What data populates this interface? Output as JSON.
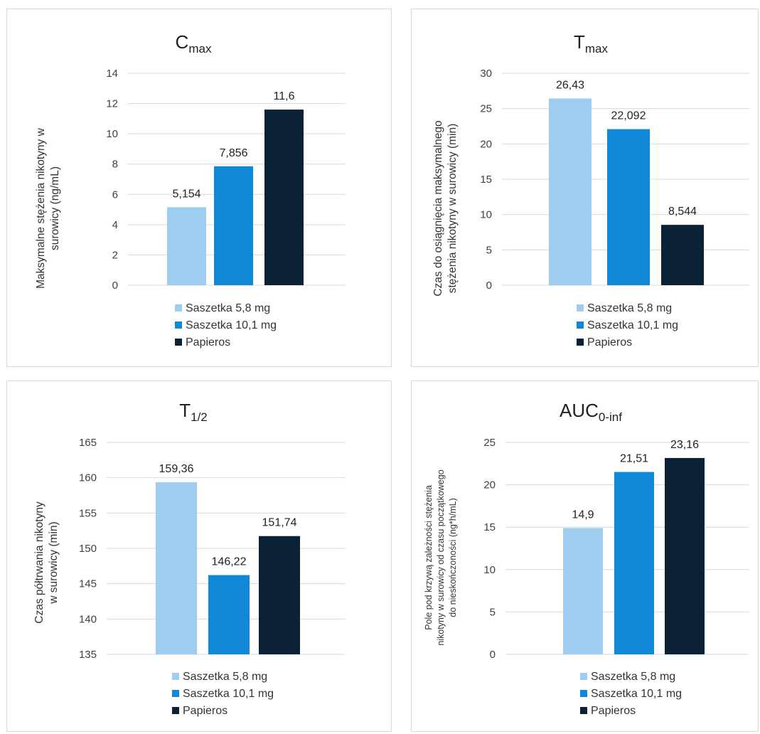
{
  "colors": {
    "saszetka_5_8": "#9fcdef",
    "saszetka_10_1": "#1088d8",
    "papieros": "#0a2136"
  },
  "chart_data": [
    {
      "type": "bar",
      "title_main": "C",
      "title_sub": "max",
      "ylabel": [
        "Maksymalne stężenia nikotyny w",
        "surowicy  (ng/mL)"
      ],
      "ylim": [
        0,
        14
      ],
      "ticks": [
        "0",
        "2",
        "4",
        "6",
        "8",
        "10",
        "12",
        "14"
      ],
      "tick_values": [
        0,
        2,
        4,
        6,
        8,
        10,
        12,
        14
      ],
      "series": [
        {
          "name": "Saszetka 5,8 mg",
          "value": 5.154,
          "label": "5,154"
        },
        {
          "name": "Saszetka 10,1 mg",
          "value": 7.856,
          "label": "7,856"
        },
        {
          "name": "Papieros",
          "value": 11.6,
          "label": "11,6"
        }
      ],
      "legend": "bottom"
    },
    {
      "type": "bar",
      "title_main": "T",
      "title_sub": "max",
      "ylabel": [
        "Czas do osiągnięcia maksymalnego",
        "stężenia nikotyny w surowicy (min)"
      ],
      "ylim": [
        0,
        30
      ],
      "ticks": [
        "0",
        "5",
        "10",
        "15",
        "20",
        "25",
        "30"
      ],
      "tick_values": [
        0,
        5,
        10,
        15,
        20,
        25,
        30
      ],
      "series": [
        {
          "name": "Saszetka 5,8 mg",
          "value": 26.43,
          "label": "26,43"
        },
        {
          "name": "Saszetka 10,1 mg",
          "value": 22.092,
          "label": "22,092"
        },
        {
          "name": "Papieros",
          "value": 8.544,
          "label": "8,544"
        }
      ],
      "legend": "bottom"
    },
    {
      "type": "bar",
      "title_main": "T",
      "title_sub": "1/2",
      "ylabel": [
        "Czas półtrwania nikotyny",
        "w surowicy (min)"
      ],
      "ylim": [
        135,
        165
      ],
      "ticks": [
        "135",
        "140",
        "145",
        "150",
        "155",
        "160",
        "165"
      ],
      "tick_values": [
        135,
        140,
        145,
        150,
        155,
        160,
        165
      ],
      "series": [
        {
          "name": "Saszetka 5,8 mg",
          "value": 159.36,
          "label": "159,36"
        },
        {
          "name": "Saszetka 10,1 mg",
          "value": 146.22,
          "label": "146,22"
        },
        {
          "name": "Papieros",
          "value": 151.74,
          "label": "151,74"
        }
      ],
      "legend": "bottom"
    },
    {
      "type": "bar",
      "title_main": "AUC",
      "title_sub": "0-inf",
      "ylabel": [
        "Pole pod krzywą zależności stężenia",
        "nikotyny w surowicy od czasu początkowego",
        "do nieskończoności (ng*h/mL)"
      ],
      "ylim": [
        0,
        25
      ],
      "ticks": [
        "0",
        "5",
        "10",
        "15",
        "20",
        "25"
      ],
      "tick_values": [
        0,
        5,
        10,
        15,
        20,
        25
      ],
      "series": [
        {
          "name": "Saszetka 5,8 mg",
          "value": 14.9,
          "label": "14,9"
        },
        {
          "name": "Saszetka 10,1 mg",
          "value": 21.51,
          "label": "21,51"
        },
        {
          "name": "Papieros",
          "value": 23.16,
          "label": "23,16"
        }
      ],
      "legend": "bottom"
    }
  ]
}
